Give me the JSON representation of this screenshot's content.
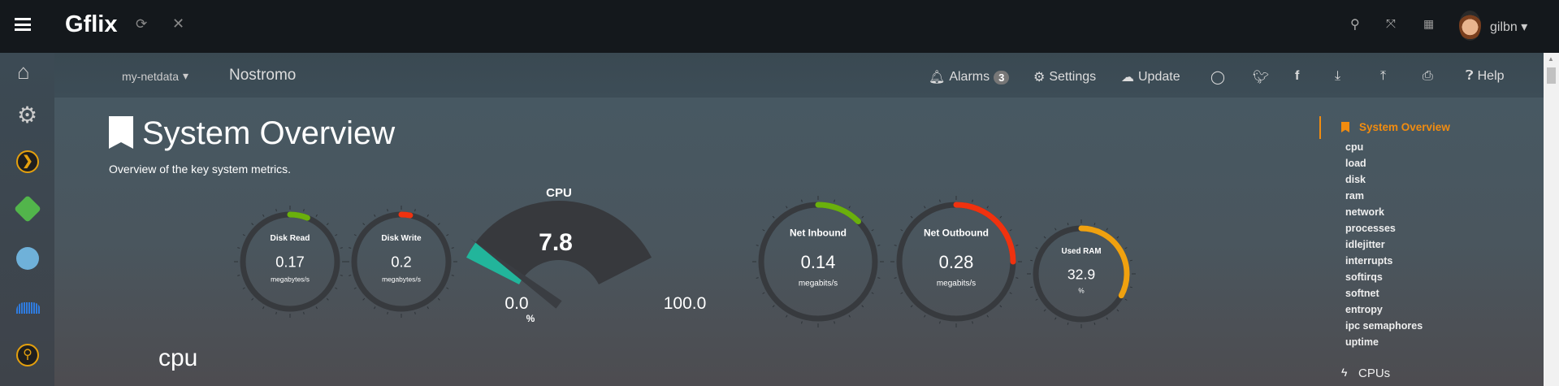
{
  "topbar": {
    "app_title": "Gflix",
    "user": "gilbn",
    "icons": [
      "menu-icon",
      "refresh-icon",
      "close-icon",
      "search-icon",
      "fullscreen-icon",
      "translate-icon"
    ]
  },
  "sidebar": {
    "items": [
      "home-icon",
      "settings-icon",
      "plex-icon",
      "emby-icon",
      "calibre-icon",
      "soundcloud-icon",
      "ombi-search-icon"
    ]
  },
  "navbar": {
    "server_menu": "my-netdata",
    "hostname": "Nostromo",
    "alarms_label": "Alarms",
    "alarms_count": "3",
    "settings_label": "Settings",
    "update_label": "Update",
    "help_label": "Help"
  },
  "section": {
    "title": "System Overview",
    "description": "Overview of the key system metrics.",
    "next_heading": "cpu"
  },
  "gauges": [
    {
      "title": "Disk Read",
      "value": "0.17",
      "unit": "megabytes/s",
      "fill_pct": 6,
      "color": "#6ab00c"
    },
    {
      "title": "Disk Write",
      "value": "0.2",
      "unit": "megabytes/s",
      "fill_pct": 3,
      "color": "#f0320f"
    },
    {
      "title": "Net Inbound",
      "value": "0.14",
      "unit": "megabits/s",
      "fill_pct": 12.5,
      "color": "#6ab00c"
    },
    {
      "title": "Net Outbound",
      "value": "0.28",
      "unit": "megabits/s",
      "fill_pct": 25,
      "color": "#f0320f"
    },
    {
      "title": "Used RAM",
      "value": "32.9",
      "unit": "%",
      "fill_pct": 32.9,
      "color": "#f0a10f"
    }
  ],
  "cpu_gauge": {
    "title": "CPU",
    "value": "7.8",
    "min": "0.0",
    "max": "100.0",
    "unit": "%",
    "value_pct": 7.8,
    "color": "#22b59b"
  },
  "right_nav": {
    "active": "System Overview",
    "items": [
      "cpu",
      "load",
      "disk",
      "ram",
      "network",
      "processes",
      "idlejitter",
      "interrupts",
      "softirqs",
      "softnet",
      "entropy",
      "ipc semaphores",
      "uptime"
    ],
    "next_section": "CPUs"
  },
  "colors": {
    "accent": "#f28c0f"
  }
}
